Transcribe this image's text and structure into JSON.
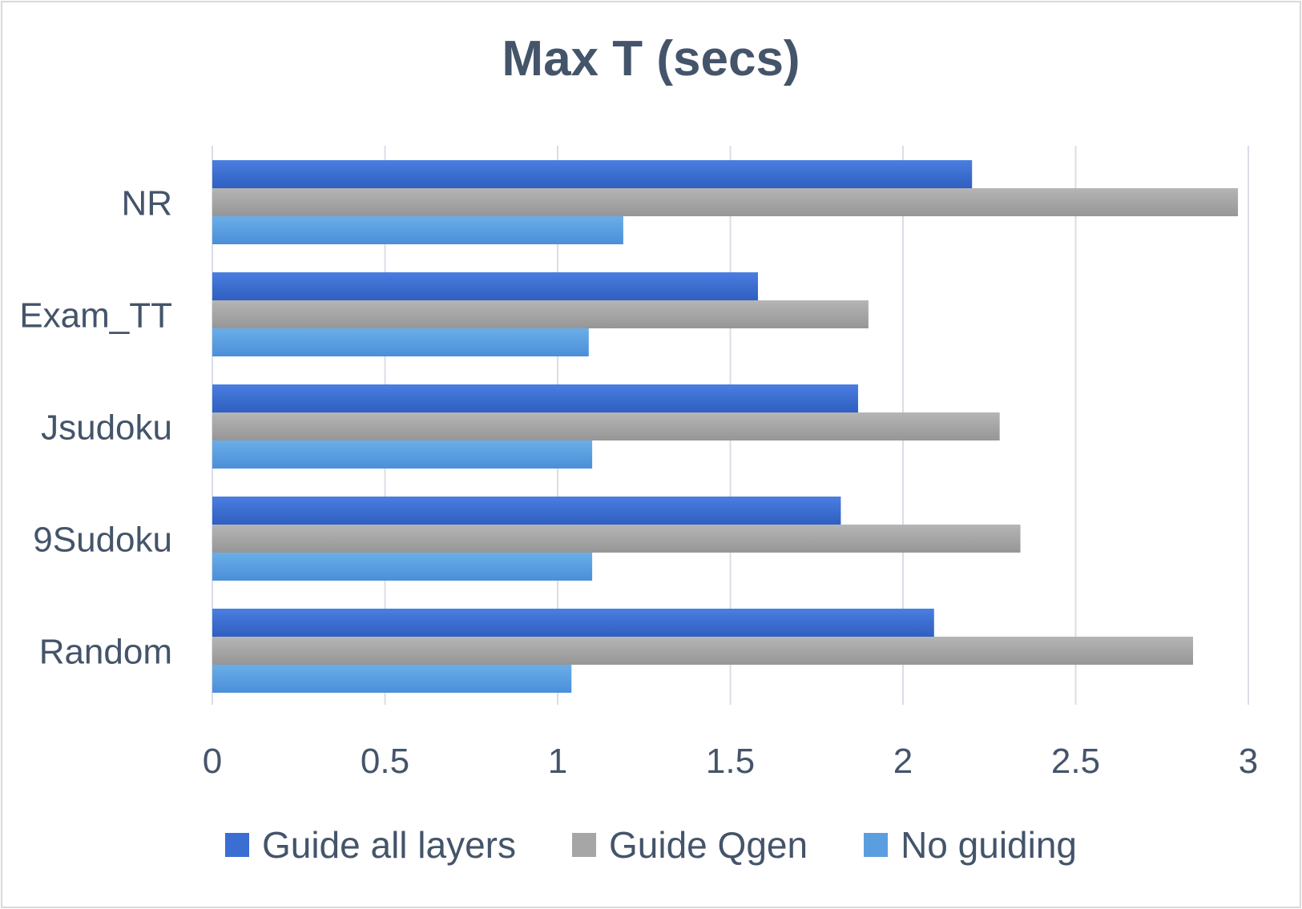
{
  "chart_data": {
    "type": "bar",
    "orientation": "horizontal",
    "title": "Max T (secs)",
    "categories": [
      "NR",
      "Exam_TT",
      "Jsudoku",
      "9Sudoku",
      "Random"
    ],
    "series": [
      {
        "name": "Guide all layers",
        "color": "#3a6ed2",
        "values": [
          2.2,
          1.58,
          1.87,
          1.82,
          2.09
        ]
      },
      {
        "name": "Guide Qgen",
        "color": "#a6a6a6",
        "values": [
          2.97,
          1.9,
          2.28,
          2.34,
          2.84
        ]
      },
      {
        "name": "No guiding",
        "color": "#5b9ee0",
        "values": [
          1.19,
          1.09,
          1.1,
          1.1,
          1.04
        ]
      }
    ],
    "xlim": [
      0,
      3
    ],
    "xticks": [
      "0",
      "0.5",
      "1",
      "1.5",
      "2",
      "2.5",
      "3"
    ],
    "xtick_values": [
      0,
      0.5,
      1,
      1.5,
      2,
      2.5,
      3
    ],
    "grid": true,
    "legend_position": "bottom"
  }
}
